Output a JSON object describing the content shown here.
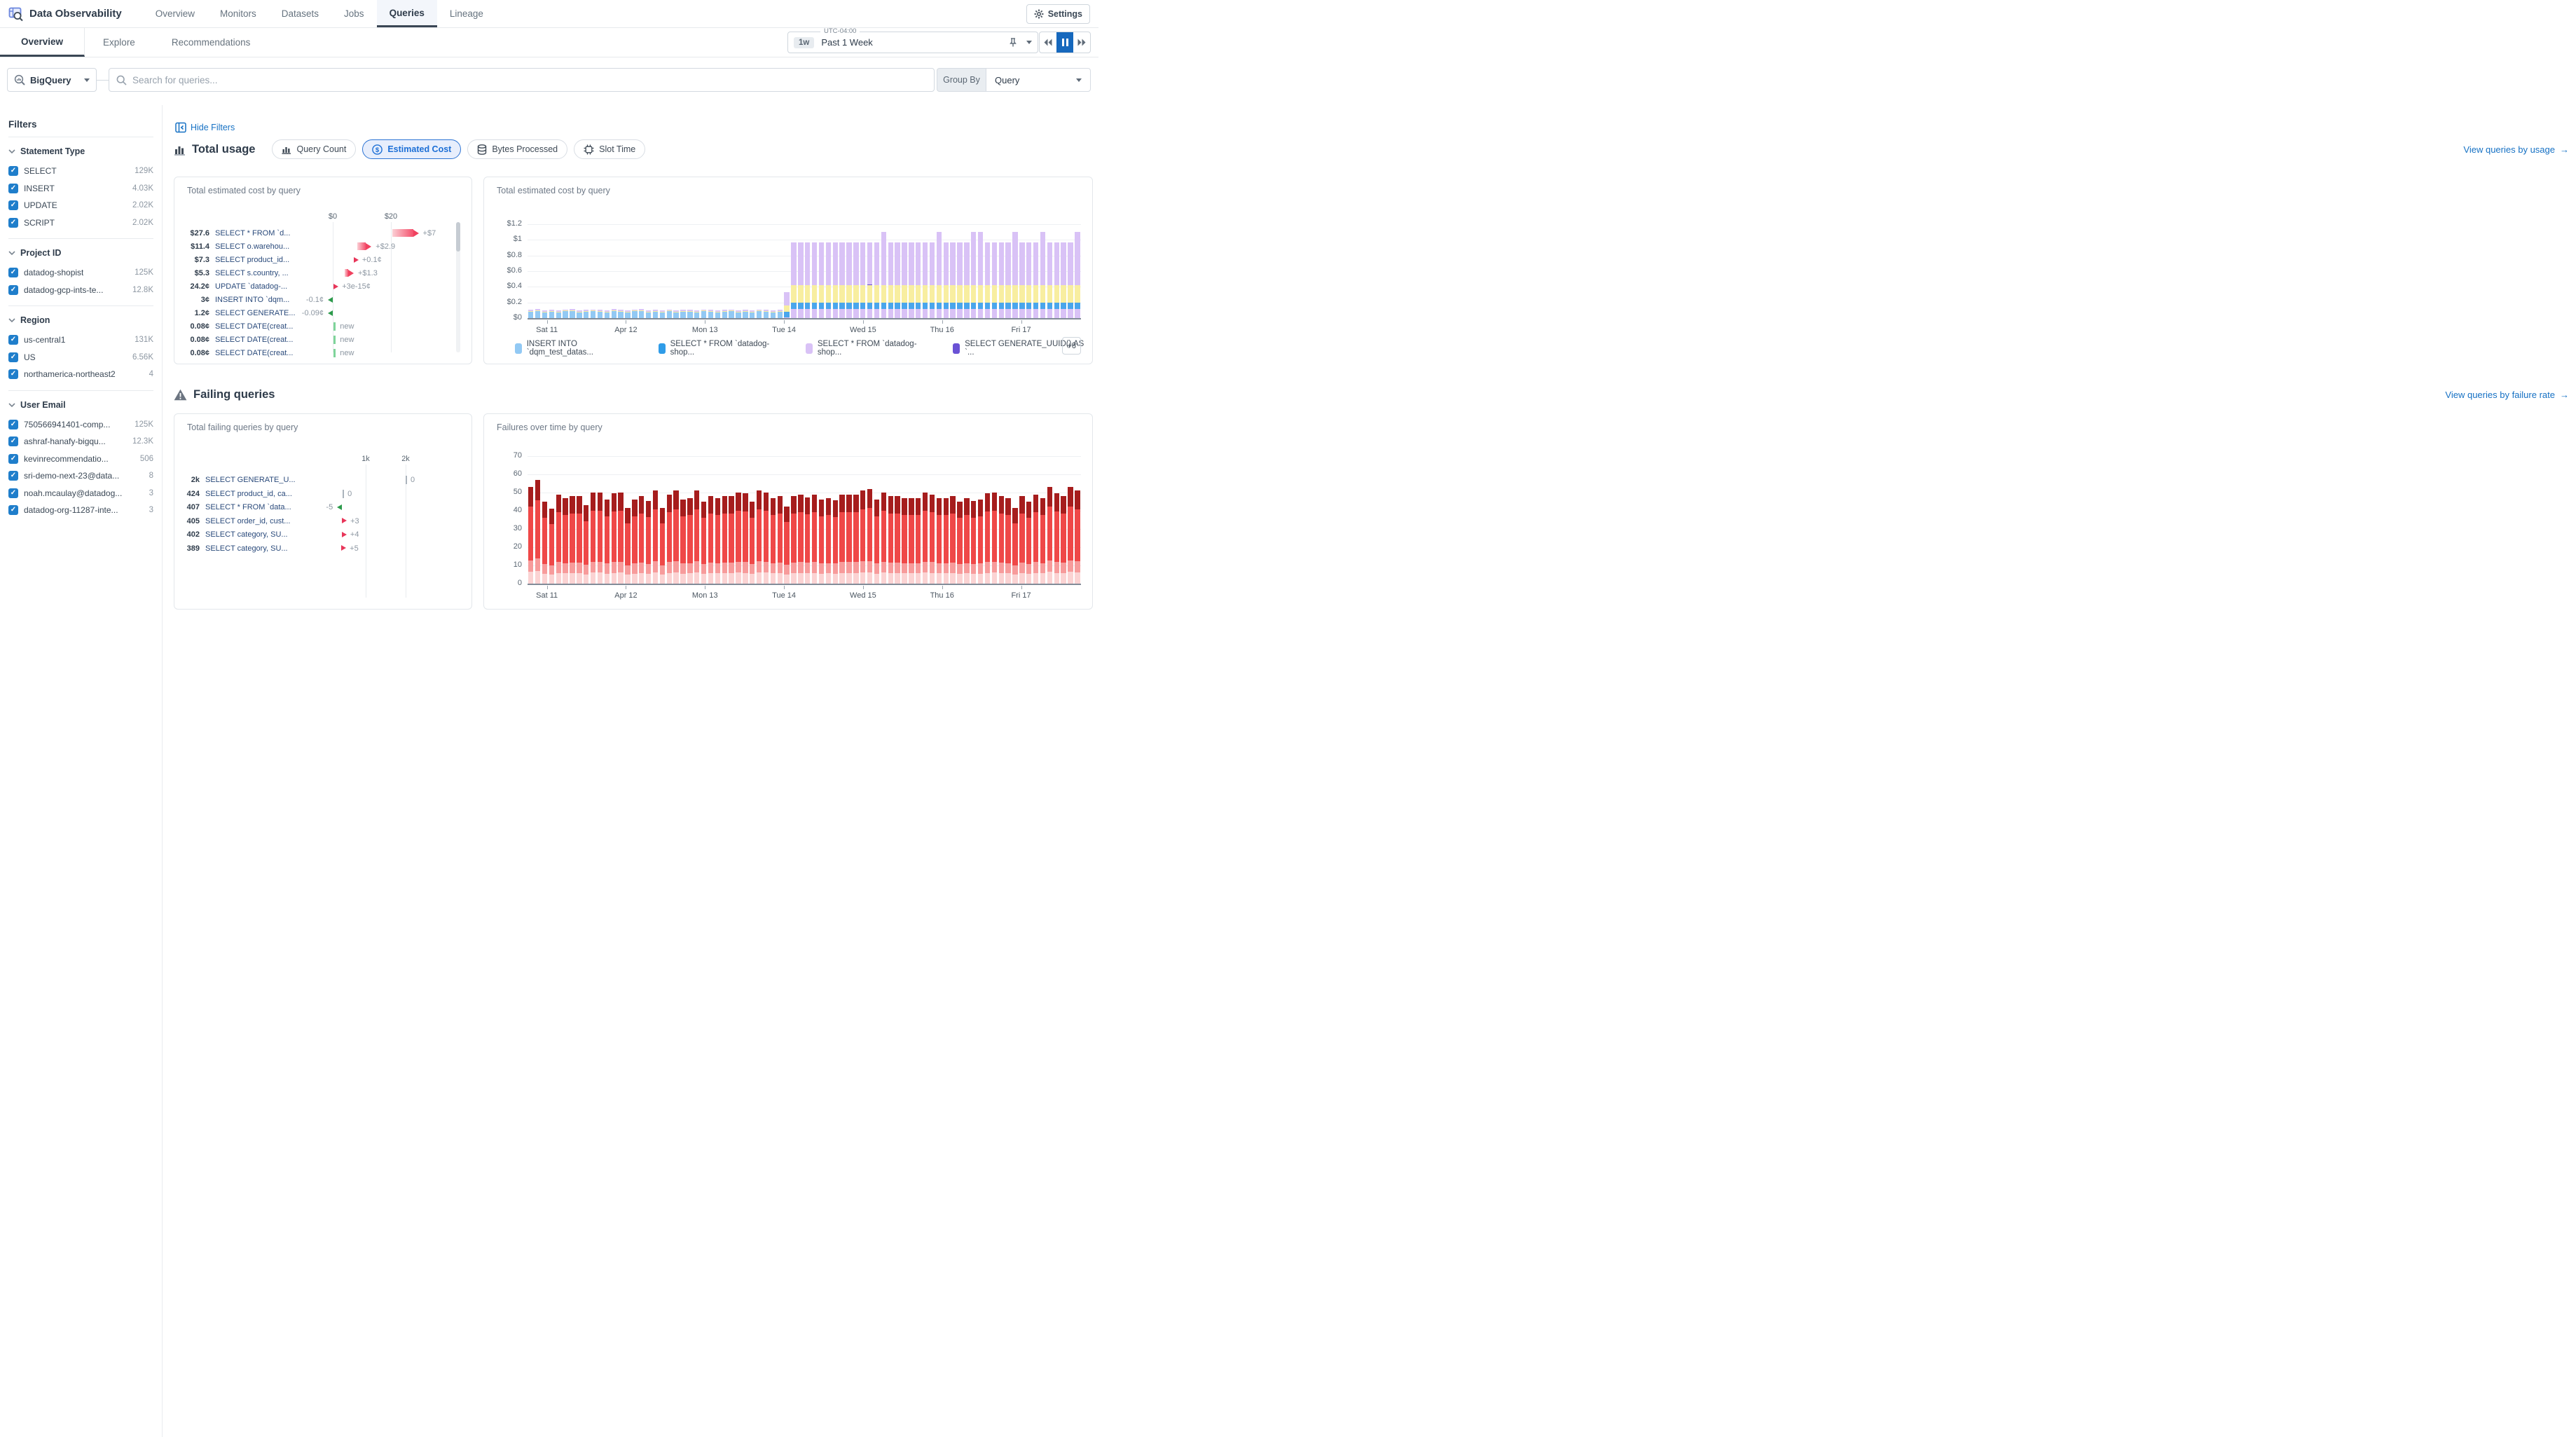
{
  "glyphs": {
    "arrow_right": "→",
    "check": "✓"
  },
  "app": {
    "title": "Data Observability",
    "nav": [
      {
        "label": "Overview",
        "active": false
      },
      {
        "label": "Monitors",
        "active": false
      },
      {
        "label": "Datasets",
        "active": false
      },
      {
        "label": "Jobs",
        "active": false
      },
      {
        "label": "Queries",
        "active": true
      },
      {
        "label": "Lineage",
        "active": false
      }
    ],
    "settings_label": "Settings"
  },
  "subnav": {
    "tabs": [
      {
        "label": "Overview",
        "active": true
      },
      {
        "label": "Explore",
        "active": false
      },
      {
        "label": "Recommendations",
        "active": false
      }
    ],
    "time": {
      "zone": "UTC-04:00",
      "range_short": "1w",
      "range_label": "Past 1 Week"
    }
  },
  "search": {
    "source": "BigQuery",
    "placeholder": "Search for queries...",
    "group_by_label": "Group By",
    "group_by_value": "Query"
  },
  "filters": {
    "title": "Filters",
    "sections": [
      {
        "title": "Statement Type",
        "items": [
          {
            "label": "SELECT",
            "count": "129K"
          },
          {
            "label": "INSERT",
            "count": "4.03K"
          },
          {
            "label": "UPDATE",
            "count": "2.02K"
          },
          {
            "label": "SCRIPT",
            "count": "2.02K"
          }
        ]
      },
      {
        "title": "Project ID",
        "items": [
          {
            "label": "datadog-shopist",
            "count": "125K"
          },
          {
            "label": "datadog-gcp-ints-te...",
            "count": "12.8K"
          }
        ]
      },
      {
        "title": "Region",
        "items": [
          {
            "label": "us-central1",
            "count": "131K"
          },
          {
            "label": "US",
            "count": "6.56K"
          },
          {
            "label": "northamerica-northeast2",
            "count": "4"
          }
        ]
      },
      {
        "title": "User Email",
        "items": [
          {
            "label": "750566941401-comp...",
            "count": "125K"
          },
          {
            "label": "ashraf-hanafy-bigqu...",
            "count": "12.3K"
          },
          {
            "label": "kevinrecommendatio...",
            "count": "506"
          },
          {
            "label": "sri-demo-next-23@data...",
            "count": "8"
          },
          {
            "label": "noah.mcaulay@datadog...",
            "count": "3"
          },
          {
            "label": "datadog-org-11287-inte...",
            "count": "3"
          }
        ]
      }
    ]
  },
  "usage": {
    "hide_filters_label": "Hide Filters",
    "section_title": "Total usage",
    "metrics": [
      {
        "label": "Query Count",
        "icon": "bar-chart-icon",
        "active": false
      },
      {
        "label": "Estimated Cost",
        "icon": "dollar-icon",
        "active": true
      },
      {
        "label": "Bytes Processed",
        "icon": "database-icon",
        "active": false
      },
      {
        "label": "Slot Time",
        "icon": "chip-icon",
        "active": false
      }
    ],
    "view_link": "View queries by usage"
  },
  "failing": {
    "section_title": "Failing queries",
    "view_link": "View queries by failure rate"
  },
  "chart_data": [
    {
      "id": "cost-by-query-list",
      "type": "bar",
      "title": "Total estimated cost by query",
      "x_ticks": [
        {
          "label": "$0",
          "value": 0
        },
        {
          "label": "$20",
          "value": 20
        }
      ],
      "rows": [
        {
          "value": "$27.6",
          "label": "SELECT * FROM `d...",
          "change": "+$7",
          "marker": "bar",
          "from": 20.6,
          "to": 27.6
        },
        {
          "value": "$11.4",
          "label": "SELECT o.warehou...",
          "change": "+$2.9",
          "marker": "bar",
          "from": 8.5,
          "to": 11.4
        },
        {
          "value": "$7.3",
          "label": "SELECT product_id...",
          "change": "+0.1¢",
          "marker": "arrow-right",
          "at": 7.2
        },
        {
          "value": "$5.3",
          "label": "SELECT s.country, ...",
          "change": "+$1.3",
          "marker": "bar",
          "from": 4.0,
          "to": 5.3
        },
        {
          "value": "24.2¢",
          "label": "UPDATE `datadog-...",
          "change": "+3e-15¢",
          "marker": "arrow-right",
          "at": 0.3
        },
        {
          "value": "3¢",
          "label": "INSERT INTO `dqm...",
          "change": "-0.1¢",
          "marker": "arrow-left",
          "at": 0
        },
        {
          "value": "1.2¢",
          "label": "SELECT GENERATE...",
          "change": "-0.09¢",
          "marker": "arrow-left",
          "at": 0
        },
        {
          "value": "0.08¢",
          "label": "SELECT DATE(creat...",
          "change": "new",
          "marker": "new",
          "at": 0.3
        },
        {
          "value": "0.08¢",
          "label": "SELECT DATE(creat...",
          "change": "new",
          "marker": "new",
          "at": 0.3
        },
        {
          "value": "0.08¢",
          "label": "SELECT DATE(creat...",
          "change": "new",
          "marker": "new",
          "at": 0.3
        }
      ]
    },
    {
      "id": "cost-over-time",
      "type": "bar-stacked",
      "title": "Total estimated cost by query",
      "y_ticks": [
        {
          "label": "$1.2",
          "value": 1.2
        },
        {
          "label": "$1",
          "value": 1.0
        },
        {
          "label": "$0.8",
          "value": 0.8
        },
        {
          "label": "$0.6",
          "value": 0.6
        },
        {
          "label": "$0.4",
          "value": 0.4
        },
        {
          "label": "$0.2",
          "value": 0.2
        },
        {
          "label": "$0",
          "value": 0
        }
      ],
      "x_ticks": [
        "Sat 11",
        "Apr 12",
        "Mon 13",
        "Tue 14",
        "Wed 15",
        "Thu 16",
        "Fri 17"
      ],
      "colors": {
        "lightblue": "#92c9f4",
        "blue": "#4aa6ec",
        "lavender": "#d9c2f6",
        "yellow": "#f8eea0",
        "purple": "#6a52d5"
      },
      "pre_totals": [
        0.105,
        0.115,
        0.1,
        0.105,
        0.1,
        0.11,
        0.115,
        0.1,
        0.105,
        0.11,
        0.105,
        0.1,
        0.115,
        0.105,
        0.1,
        0.11,
        0.115,
        0.1,
        0.105,
        0.1,
        0.11,
        0.1,
        0.105,
        0.105,
        0.1,
        0.11,
        0.105,
        0.1,
        0.105,
        0.11,
        0.1,
        0.105,
        0.1,
        0.11,
        0.105,
        0.1,
        0.105
      ],
      "pre_segments": {
        "yellow": 0.006,
        "lavender_cap": 0.015
      },
      "transition_segments": [
        [
          "lavender",
          0.012
        ],
        [
          "blue",
          0.065
        ],
        [
          "yellow",
          0.08
        ],
        [
          "lavender",
          0.17
        ]
      ],
      "post_totals": [
        0.97,
        0.97,
        0.97,
        0.97,
        0.97,
        0.97,
        0.97,
        0.97,
        0.97,
        0.97,
        0.97,
        0.97,
        0.97,
        1.1,
        0.97,
        0.97,
        0.97,
        0.97,
        0.97,
        0.97,
        0.97,
        1.1,
        0.97,
        0.97,
        0.97,
        0.97,
        1.1,
        1.1,
        0.97,
        0.97,
        0.97,
        0.97,
        1.1,
        0.97,
        0.97,
        0.97,
        1.1,
        0.97,
        0.97,
        0.97,
        0.97,
        1.1
      ],
      "post_segments": {
        "lavender_base": 0.12,
        "blue": 0.08,
        "yellow": 0.22
      },
      "purple_marker_post_index": 11,
      "purple_marker_height": 0.012,
      "legend": [
        {
          "label": "INSERT INTO `dqm_test_datas...",
          "color": "#92c9f4"
        },
        {
          "label": "SELECT * FROM `datadog-shop...",
          "color": "#2f9ce8"
        },
        {
          "label": "SELECT * FROM `datadog-shop...",
          "color": "#d9c2f6"
        },
        {
          "label": "SELECT GENERATE_UUID() AS `...",
          "color": "#6a52d5"
        }
      ],
      "legend_more": "+6"
    },
    {
      "id": "failing-by-query-list",
      "type": "bar",
      "title": "Total failing queries by query",
      "x_ticks": [
        {
          "label": "1k",
          "value": 1000
        },
        {
          "label": "2k",
          "value": 2000
        }
      ],
      "rows": [
        {
          "value": "2k",
          "label": "SELECT GENERATE_U...",
          "change": "0",
          "marker": "zero",
          "at": 2000
        },
        {
          "value": "424",
          "label": "SELECT product_id, ca...",
          "change": "0",
          "marker": "zero",
          "at": 424
        },
        {
          "value": "407",
          "label": "SELECT * FROM `data...",
          "change": "-5",
          "marker": "arrow-left",
          "at": 407
        },
        {
          "value": "405",
          "label": "SELECT order_id, cust...",
          "change": "+3",
          "marker": "arrow-right",
          "at": 405
        },
        {
          "value": "402",
          "label": "SELECT category, SU...",
          "change": "+4",
          "marker": "arrow-right",
          "at": 402
        },
        {
          "value": "389",
          "label": "SELECT category, SU...",
          "change": "+5",
          "marker": "arrow-right",
          "at": 389
        }
      ]
    },
    {
      "id": "failures-over-time",
      "type": "bar-stacked",
      "title": "Failures over time by query",
      "y_ticks": [
        {
          "label": "70",
          "value": 70
        },
        {
          "label": "60",
          "value": 60
        },
        {
          "label": "50",
          "value": 50
        },
        {
          "label": "40",
          "value": 40
        },
        {
          "label": "30",
          "value": 30
        },
        {
          "label": "20",
          "value": 20
        },
        {
          "label": "10",
          "value": 10
        },
        {
          "label": "0",
          "value": 0
        }
      ],
      "x_ticks": [
        "Sat 11",
        "Apr 12",
        "Mon 13",
        "Tue 14",
        "Wed 15",
        "Thu 16",
        "Fri 17"
      ],
      "colors": [
        "#fbd3d3",
        "#f79b9b",
        "#ef4848",
        "#a61d1d"
      ],
      "fractions": [
        0.12,
        0.12,
        0.56,
        0.2
      ],
      "totals": [
        53,
        57,
        45,
        41,
        49,
        47,
        48,
        48,
        43,
        50,
        50,
        46,
        49.5,
        50,
        41.5,
        46,
        48,
        45.5,
        51,
        41.5,
        49,
        51,
        46,
        47,
        51,
        45,
        48,
        47,
        48,
        48,
        50,
        49.5,
        45,
        51,
        50,
        47,
        48,
        42.5,
        48,
        49,
        47.5,
        49,
        46,
        47,
        45.8,
        49,
        49,
        49,
        51,
        52,
        46,
        50,
        48,
        48,
        47,
        47,
        47,
        50,
        49,
        47,
        47,
        48,
        45,
        47,
        45.2,
        46,
        49.5,
        50,
        48,
        47,
        41.5,
        48,
        45,
        49,
        47,
        53,
        49.5,
        48,
        53,
        51
      ]
    }
  ]
}
